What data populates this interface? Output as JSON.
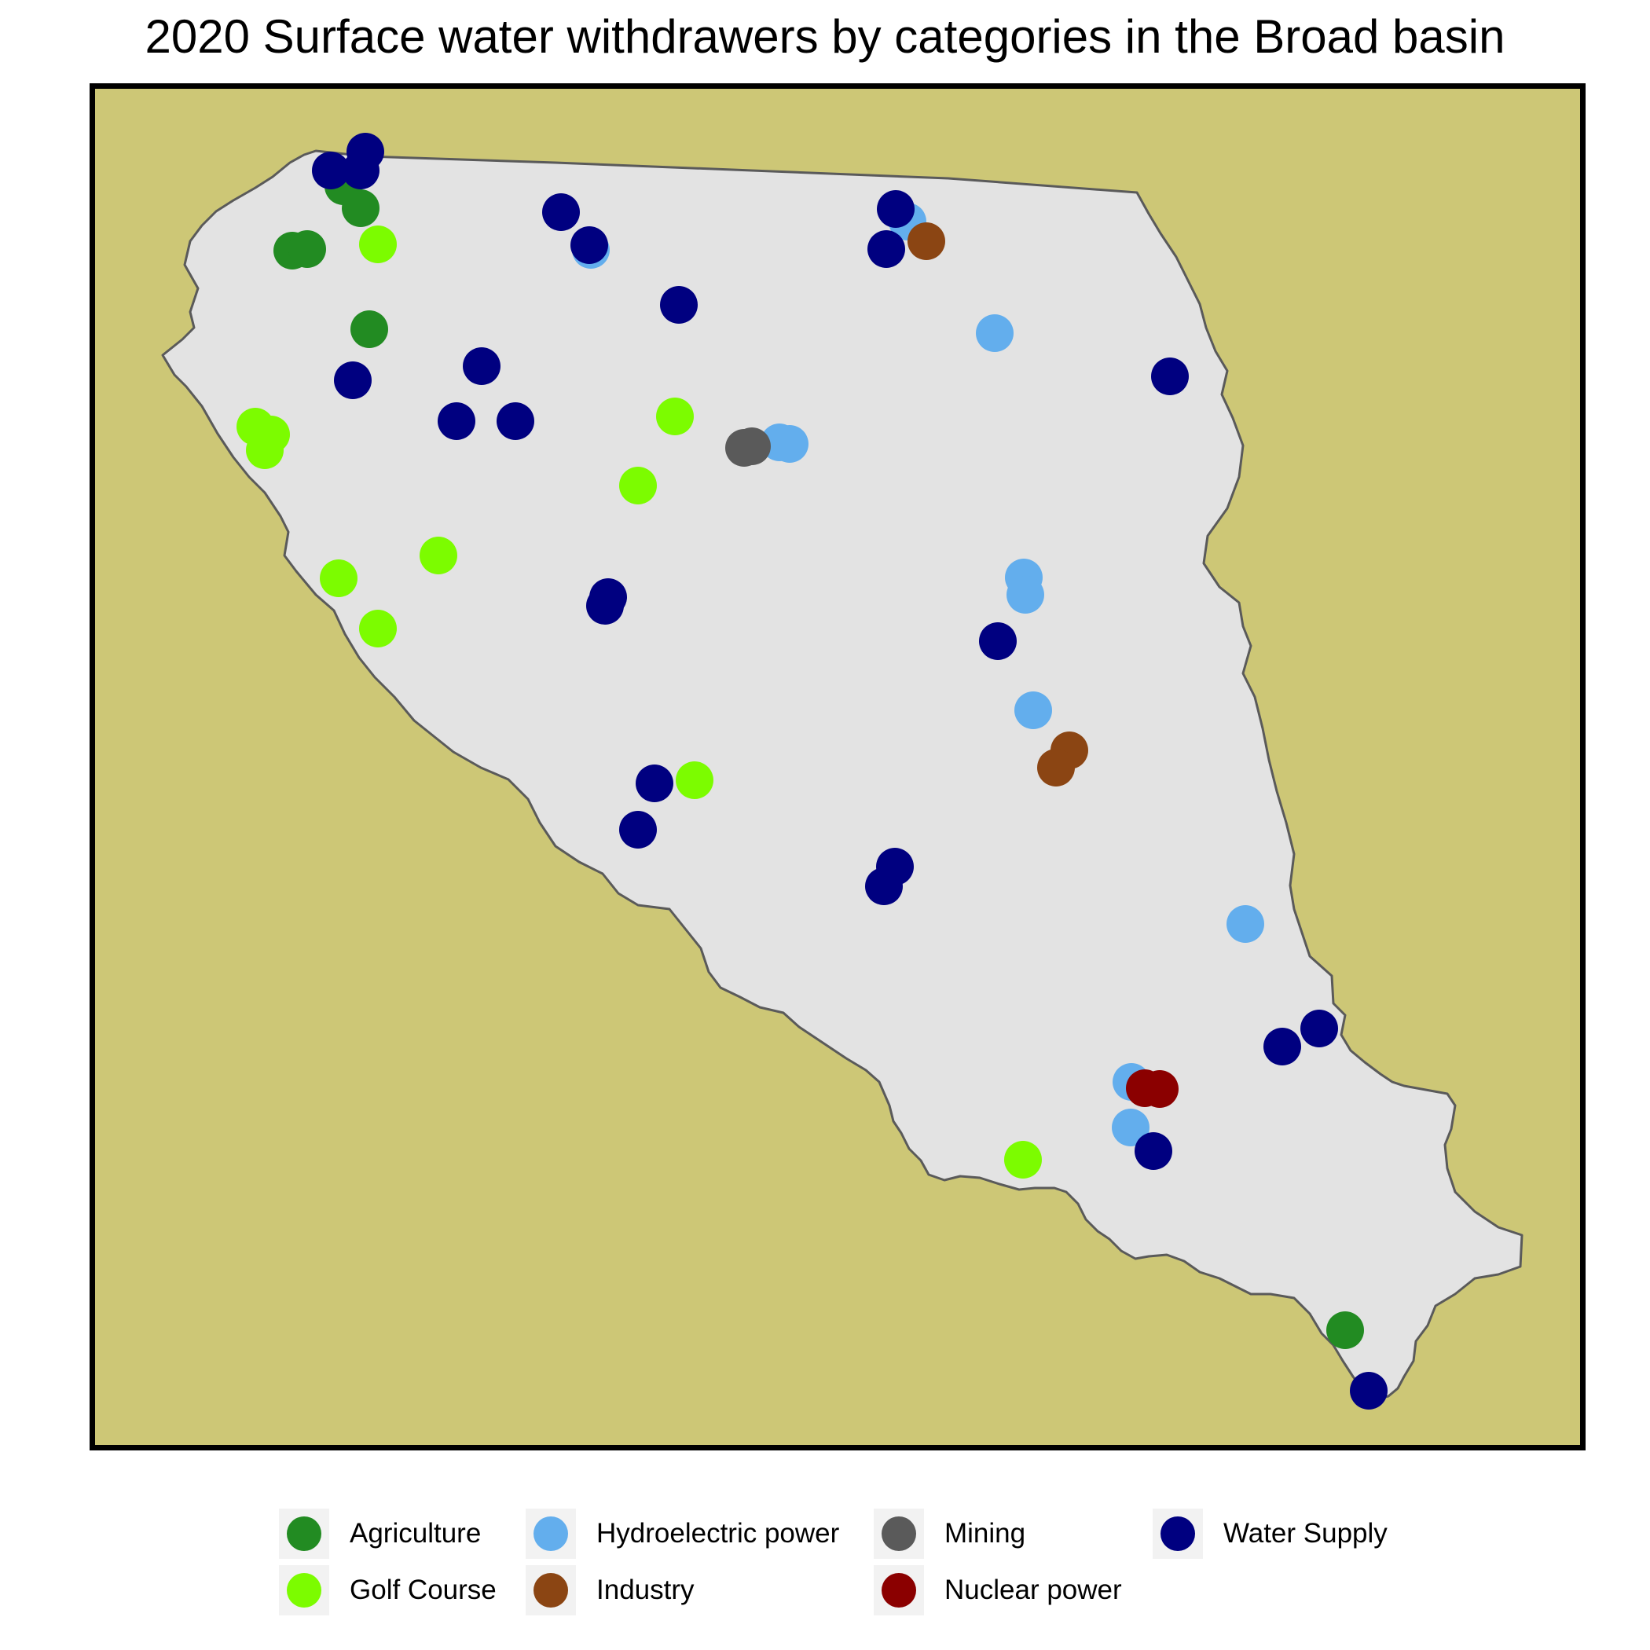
{
  "title": "2020 Surface water withdrawers by categories in the Broad basin",
  "colors": {
    "background": "#cdc776",
    "basin_fill": "#e3e3e3",
    "basin_border": "#5a5a5a",
    "frame": "#000000"
  },
  "legend": [
    {
      "key": "agriculture",
      "label": "Agriculture",
      "color": "#228b22"
    },
    {
      "key": "golf",
      "label": "Golf Course",
      "color": "#7cfc00"
    },
    {
      "key": "hydro",
      "label": "Hydroelectric power",
      "color": "#63aeed"
    },
    {
      "key": "industry",
      "label": "Industry",
      "color": "#8b4513"
    },
    {
      "key": "mining",
      "label": "Mining",
      "color": "#5a5a5a"
    },
    {
      "key": "nuclear",
      "label": "Nuclear power",
      "color": "#8b0000"
    },
    {
      "key": "water",
      "label": "Water Supply",
      "color": "#000080"
    }
  ]
}
